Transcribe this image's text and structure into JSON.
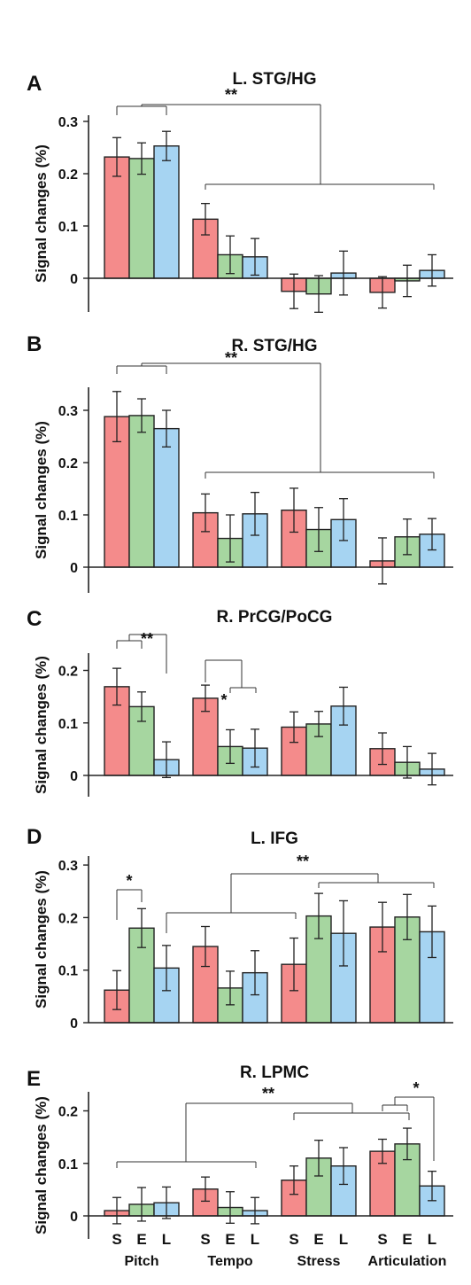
{
  "colors": {
    "S": "#f48b8b",
    "E": "#a6d6a0",
    "L": "#a6d4f2",
    "stroke": "#222222"
  },
  "x_axis": {
    "groups": [
      "Pitch",
      "Tempo",
      "Stress",
      "Articulation"
    ],
    "conditions": [
      "S",
      "E",
      "L"
    ]
  },
  "chart_data": [
    {
      "type": "bar",
      "panel_letter": "A",
      "title": "L. STG/HG",
      "ylabel": "Signal changes (%)",
      "ylim": [
        -0.07,
        0.3
      ],
      "yticks": [
        {
          "v": 0,
          "label": "0"
        },
        {
          "v": 0.1,
          "label": "0.1"
        },
        {
          "v": 0.2,
          "label": "0.2"
        },
        {
          "v": 0.3,
          "label": "0.3"
        }
      ],
      "categories": [
        "Pitch",
        "Tempo",
        "Stress",
        "Articulation"
      ],
      "series": [
        {
          "name": "S",
          "values": [
            0.232,
            0.113,
            -0.025,
            -0.027
          ],
          "errors": [
            0.037,
            0.03,
            0.033,
            0.03
          ]
        },
        {
          "name": "E",
          "values": [
            0.229,
            0.045,
            -0.03,
            -0.005
          ],
          "errors": [
            0.03,
            0.036,
            0.035,
            0.03
          ]
        },
        {
          "name": "L",
          "values": [
            0.253,
            0.041,
            0.01,
            0.015
          ],
          "errors": [
            0.028,
            0.035,
            0.042,
            0.03
          ]
        }
      ],
      "annotations": [
        {
          "label": "**"
        }
      ]
    },
    {
      "type": "bar",
      "panel_letter": "B",
      "title": "R. STG/HG",
      "ylabel": "Signal changes (%)",
      "ylim": [
        -0.05,
        0.35
      ],
      "yticks": [
        {
          "v": 0,
          "label": "0"
        },
        {
          "v": 0.1,
          "label": "0.1"
        },
        {
          "v": 0.2,
          "label": "0.2"
        },
        {
          "v": 0.3,
          "label": "0.3"
        }
      ],
      "categories": [
        "Pitch",
        "Tempo",
        "Stress",
        "Articulation"
      ],
      "series": [
        {
          "name": "S",
          "values": [
            0.288,
            0.104,
            0.109,
            0.012
          ],
          "errors": [
            0.048,
            0.036,
            0.042,
            0.044
          ]
        },
        {
          "name": "E",
          "values": [
            0.29,
            0.055,
            0.072,
            0.058
          ],
          "errors": [
            0.032,
            0.045,
            0.042,
            0.034
          ]
        },
        {
          "name": "L",
          "values": [
            0.265,
            0.102,
            0.091,
            0.063
          ],
          "errors": [
            0.035,
            0.041,
            0.04,
            0.03
          ]
        }
      ],
      "annotations": [
        {
          "label": "**"
        }
      ]
    },
    {
      "type": "bar",
      "panel_letter": "C",
      "title": "R. PrCG/PoCG",
      "ylabel": "Signal changes (%)",
      "ylim": [
        -0.04,
        0.24
      ],
      "yticks": [
        {
          "v": 0,
          "label": "0"
        },
        {
          "v": 0.1,
          "label": "0.1"
        },
        {
          "v": 0.2,
          "label": "0.2"
        }
      ],
      "categories": [
        "Pitch",
        "Tempo",
        "Stress",
        "Articulation"
      ],
      "series": [
        {
          "name": "S",
          "values": [
            0.169,
            0.147,
            0.092,
            0.051
          ],
          "errors": [
            0.035,
            0.025,
            0.029,
            0.03
          ]
        },
        {
          "name": "E",
          "values": [
            0.131,
            0.055,
            0.098,
            0.025
          ],
          "errors": [
            0.028,
            0.032,
            0.024,
            0.03
          ]
        },
        {
          "name": "L",
          "values": [
            0.03,
            0.052,
            0.132,
            0.012
          ],
          "errors": [
            0.034,
            0.036,
            0.036,
            0.03
          ]
        }
      ],
      "annotations": [
        {
          "label": "**"
        },
        {
          "label": "*"
        }
      ]
    },
    {
      "type": "bar",
      "panel_letter": "D",
      "title": "L. IFG",
      "ylabel": "Signal changes (%)",
      "ylim": [
        0,
        0.3
      ],
      "yticks": [
        {
          "v": 0,
          "label": "0"
        },
        {
          "v": 0.1,
          "label": "0.1"
        },
        {
          "v": 0.2,
          "label": "0.2"
        },
        {
          "v": 0.3,
          "label": "0.3"
        }
      ],
      "categories": [
        "Pitch",
        "Tempo",
        "Stress",
        "Articulation"
      ],
      "series": [
        {
          "name": "S",
          "values": [
            0.062,
            0.145,
            0.111,
            0.182
          ],
          "errors": [
            0.037,
            0.038,
            0.05,
            0.047
          ]
        },
        {
          "name": "E",
          "values": [
            0.18,
            0.066,
            0.203,
            0.201
          ],
          "errors": [
            0.037,
            0.032,
            0.043,
            0.043
          ]
        },
        {
          "name": "L",
          "values": [
            0.104,
            0.095,
            0.17,
            0.173
          ],
          "errors": [
            0.043,
            0.042,
            0.062,
            0.049
          ]
        }
      ],
      "annotations": [
        {
          "label": "*"
        },
        {
          "label": "**"
        }
      ]
    },
    {
      "type": "bar",
      "panel_letter": "E",
      "title": "R. LPMC",
      "ylabel": "Signal changes (%)",
      "ylim": [
        -0.03,
        0.24
      ],
      "yticks": [
        {
          "v": 0,
          "label": "0"
        },
        {
          "v": 0.1,
          "label": "0.1"
        },
        {
          "v": 0.2,
          "label": "0.2"
        }
      ],
      "categories": [
        "Pitch",
        "Tempo",
        "Stress",
        "Articulation"
      ],
      "series": [
        {
          "name": "S",
          "values": [
            0.01,
            0.051,
            0.068,
            0.123
          ],
          "errors": [
            0.025,
            0.023,
            0.027,
            0.023
          ]
        },
        {
          "name": "E",
          "values": [
            0.022,
            0.016,
            0.11,
            0.137
          ],
          "errors": [
            0.032,
            0.03,
            0.034,
            0.03
          ]
        },
        {
          "name": "L",
          "values": [
            0.025,
            0.01,
            0.095,
            0.057
          ],
          "errors": [
            0.03,
            0.025,
            0.035,
            0.028
          ]
        }
      ],
      "annotations": [
        {
          "label": "**"
        },
        {
          "label": "*"
        }
      ]
    }
  ]
}
